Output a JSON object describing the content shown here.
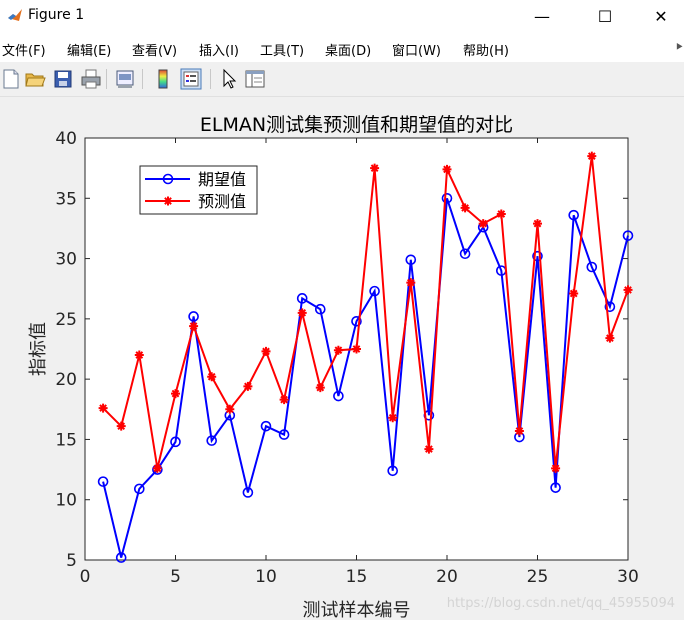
{
  "window": {
    "title": "Figure 1",
    "controls": {
      "minimize": "—",
      "maximize": "☐",
      "close": "✕"
    }
  },
  "menu": [
    {
      "label": "文件(F)"
    },
    {
      "label": "编辑(E)"
    },
    {
      "label": "查看(V)"
    },
    {
      "label": "插入(I)"
    },
    {
      "label": "工具(T)"
    },
    {
      "label": "桌面(D)"
    },
    {
      "label": "窗口(W)"
    },
    {
      "label": "帮助(H)"
    }
  ],
  "toolbar": [
    {
      "icon": "new-file-icon"
    },
    {
      "icon": "open-folder-icon"
    },
    {
      "icon": "save-icon"
    },
    {
      "icon": "print-icon"
    },
    {
      "icon": "print-preview-icon"
    },
    {
      "icon": "colorbar-icon"
    },
    {
      "icon": "legend-icon"
    },
    {
      "icon": "pointer-icon"
    },
    {
      "icon": "property-editor-icon"
    }
  ],
  "watermark": "https://blog.csdn.net/qq_45955094",
  "chart_data": {
    "type": "line",
    "title": "ELMAN测试集预测值和期望值的对比",
    "xlabel": "测试样本编号",
    "ylabel": "指标值",
    "xlim": [
      0,
      30
    ],
    "ylim": [
      5,
      40
    ],
    "xticks": [
      0,
      5,
      10,
      15,
      20,
      25,
      30
    ],
    "yticks": [
      5,
      10,
      15,
      20,
      25,
      30,
      35,
      40
    ],
    "legend_position": "top-left",
    "grid": false,
    "x": [
      1,
      2,
      3,
      4,
      5,
      6,
      7,
      8,
      9,
      10,
      11,
      12,
      13,
      14,
      15,
      16,
      17,
      18,
      19,
      20,
      21,
      22,
      23,
      24,
      25,
      26,
      27,
      28,
      29,
      30
    ],
    "series": [
      {
        "name": "期望值",
        "color": "#0000ff",
        "marker": "circle",
        "values": [
          11.5,
          5.2,
          10.9,
          12.5,
          14.8,
          25.2,
          14.9,
          17.0,
          10.6,
          16.1,
          15.4,
          26.7,
          25.8,
          18.6,
          24.8,
          27.3,
          12.4,
          29.9,
          17.0,
          35.0,
          30.4,
          32.6,
          29.0,
          15.2,
          30.2,
          11.0,
          33.6,
          29.3,
          26.0,
          31.9
        ]
      },
      {
        "name": "预测值",
        "color": "#ff0000",
        "marker": "star",
        "values": [
          17.6,
          16.1,
          22.0,
          12.6,
          18.8,
          24.4,
          20.2,
          17.5,
          19.4,
          22.3,
          18.3,
          25.5,
          19.3,
          22.4,
          22.5,
          37.5,
          16.8,
          28.0,
          14.2,
          37.4,
          34.2,
          32.9,
          33.7,
          15.7,
          32.9,
          12.6,
          27.1,
          38.5,
          23.4,
          27.4
        ]
      }
    ]
  }
}
